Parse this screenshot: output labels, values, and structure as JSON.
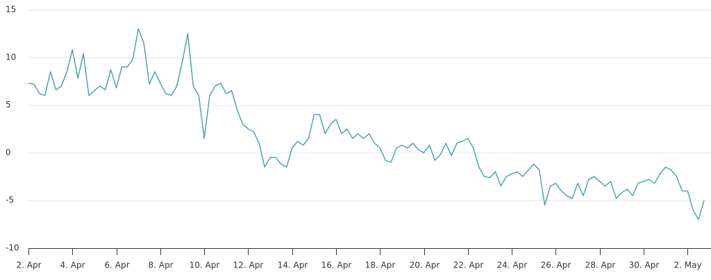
{
  "chart_data": {
    "type": "line",
    "categories": [
      "2. Apr",
      null,
      null,
      null,
      null,
      null,
      null,
      null,
      "4. Apr",
      null,
      null,
      null,
      null,
      null,
      null,
      null,
      "6. Apr",
      null,
      null,
      null,
      null,
      null,
      null,
      null,
      "8. Apr",
      null,
      null,
      null,
      null,
      null,
      null,
      null,
      "10. Apr",
      null,
      null,
      null,
      null,
      null,
      null,
      null,
      "12. Apr",
      null,
      null,
      null,
      null,
      null,
      null,
      null,
      "14. Apr",
      null,
      null,
      null,
      null,
      null,
      null,
      null,
      "16. Apr",
      null,
      null,
      null,
      null,
      null,
      null,
      null,
      "18. Apr",
      null,
      null,
      null,
      null,
      null,
      null,
      null,
      "20. Apr",
      null,
      null,
      null,
      null,
      null,
      null,
      null,
      "22. Apr",
      null,
      null,
      null,
      null,
      null,
      null,
      null,
      "24. Apr",
      null,
      null,
      null,
      null,
      null,
      null,
      null,
      "26. Apr",
      null,
      null,
      null,
      null,
      null,
      null,
      null,
      "28. Apr",
      null,
      null,
      null,
      null,
      null,
      null,
      null,
      "30. Apr",
      null,
      null,
      null,
      null,
      null,
      null,
      null,
      "2. May",
      null,
      null,
      null
    ],
    "values": [
      7.3,
      7.2,
      6.2,
      6.0,
      8.5,
      6.6,
      7.0,
      8.5,
      10.8,
      7.8,
      10.4,
      6.0,
      6.5,
      7.0,
      6.6,
      8.7,
      6.8,
      9.0,
      9.0,
      9.8,
      13.0,
      11.5,
      7.2,
      8.5,
      7.3,
      6.2,
      6.0,
      7.0,
      9.5,
      12.5,
      7.0,
      6.0,
      1.5,
      6.0,
      7.0,
      7.3,
      6.2,
      6.5,
      4.5,
      3.0,
      2.5,
      2.2,
      1.0,
      -1.5,
      -0.5,
      -0.5,
      -1.2,
      -1.5,
      0.5,
      1.2,
      0.8,
      1.5,
      4.0,
      4.0,
      2.0,
      3.0,
      3.5,
      2.0,
      2.5,
      1.5,
      2.0,
      1.5,
      2.0,
      1.0,
      0.5,
      -0.8,
      -1.0,
      0.5,
      0.8,
      0.5,
      1.0,
      0.3,
      0.0,
      0.8,
      -0.8,
      -0.2,
      1.0,
      -0.3,
      1.0,
      1.2,
      1.5,
      0.5,
      -1.5,
      -2.5,
      -2.6,
      -2.0,
      -3.5,
      -2.5,
      -2.2,
      -2.0,
      -2.5,
      -1.8,
      -1.2,
      -1.8,
      -5.5,
      -3.5,
      -3.2,
      -4.0,
      -4.5,
      -4.8,
      -3.2,
      -4.5,
      -2.8,
      -2.5,
      -3.0,
      -3.5,
      -3.0,
      -4.8,
      -4.2,
      -3.8,
      -4.5,
      -3.2,
      -3.0,
      -2.8,
      -3.2,
      -2.2,
      -1.5,
      -1.8,
      -2.5,
      -4.0,
      -4.0,
      -6.0,
      -7.0,
      -5.0
    ],
    "color": "#4aa3b5",
    "ylim": [
      -10,
      15
    ],
    "yticks": [
      -10,
      -5,
      0,
      5,
      10,
      15
    ],
    "grid": true
  }
}
